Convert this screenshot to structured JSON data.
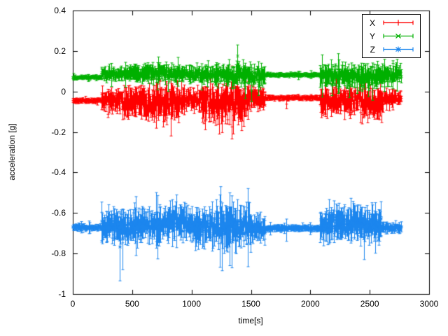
{
  "chart_data": {
    "type": "scatter",
    "style": "errorbars",
    "title": "",
    "xlabel": "time[s]",
    "ylabel": "acceleration [g]",
    "xlim": [
      0,
      3000
    ],
    "ylim": [
      -1,
      0.4
    ],
    "xticks": [
      0,
      500,
      1000,
      1500,
      2000,
      2500,
      3000
    ],
    "yticks": [
      -1,
      -0.8,
      -0.6,
      -0.4,
      -0.2,
      0,
      0.2,
      0.4
    ],
    "grid": false,
    "legend_position": "top-right",
    "sample_step_s": 4,
    "t_end_s": 2765,
    "series": [
      {
        "name": "X",
        "color": "#ff0000",
        "marker": "plus",
        "seed": 11,
        "baseline_g": -0.05,
        "segments": [
          [
            0,
            240,
            -0.045,
            0.012
          ],
          [
            240,
            420,
            -0.04,
            0.05
          ],
          [
            420,
            620,
            -0.05,
            0.07
          ],
          [
            620,
            900,
            -0.055,
            0.08
          ],
          [
            900,
            1080,
            -0.04,
            0.05
          ],
          [
            1080,
            1250,
            -0.06,
            0.08
          ],
          [
            1250,
            1480,
            -0.055,
            0.09
          ],
          [
            1480,
            1620,
            -0.03,
            0.05
          ],
          [
            1620,
            2080,
            -0.032,
            0.012
          ],
          [
            2080,
            2200,
            -0.05,
            0.07
          ],
          [
            2200,
            2420,
            -0.04,
            0.06
          ],
          [
            2420,
            2620,
            -0.06,
            0.07
          ],
          [
            2620,
            2770,
            -0.035,
            0.03
          ]
        ],
        "spikes": [
          [
            370,
            -0.11,
            -0.01
          ],
          [
            760,
            -0.175,
            -0.03
          ],
          [
            1150,
            -0.15,
            -0.02
          ],
          [
            1230,
            -0.21,
            -0.05
          ],
          [
            1300,
            -0.02,
            0.12
          ],
          [
            1390,
            -0.13,
            0.02
          ],
          [
            1800,
            -0.085,
            -0.04
          ]
        ]
      },
      {
        "name": "Y",
        "color": "#00b000",
        "marker": "cross",
        "seed": 22,
        "baseline_g": 0.08,
        "segments": [
          [
            0,
            240,
            0.07,
            0.01
          ],
          [
            240,
            470,
            0.085,
            0.03
          ],
          [
            470,
            900,
            0.09,
            0.04
          ],
          [
            900,
            1200,
            0.085,
            0.035
          ],
          [
            1200,
            1620,
            0.08,
            0.05
          ],
          [
            1620,
            2080,
            0.082,
            0.01
          ],
          [
            2080,
            2300,
            0.08,
            0.05
          ],
          [
            2300,
            2560,
            0.075,
            0.055
          ],
          [
            2560,
            2770,
            0.085,
            0.04
          ]
        ],
        "spikes": [
          [
            1385,
            0.12,
            0.23
          ],
          [
            1450,
            -0.035,
            0.07
          ],
          [
            1505,
            -0.05,
            0.06
          ],
          [
            1560,
            -0.02,
            0.08
          ],
          [
            2180,
            -0.02,
            0.09
          ],
          [
            2330,
            -0.03,
            0.09
          ],
          [
            2490,
            -0.025,
            0.095
          ],
          [
            2620,
            0.0,
            0.1
          ]
        ]
      },
      {
        "name": "Z",
        "color": "#1c86ee",
        "marker": "star",
        "seed": 33,
        "baseline_g": -0.67,
        "segments": [
          [
            0,
            240,
            -0.672,
            0.015
          ],
          [
            240,
            500,
            -0.67,
            0.07
          ],
          [
            500,
            800,
            -0.66,
            0.08
          ],
          [
            800,
            1000,
            -0.645,
            0.08
          ],
          [
            1000,
            1200,
            -0.67,
            0.08
          ],
          [
            1200,
            1500,
            -0.67,
            0.1
          ],
          [
            1500,
            1620,
            -0.68,
            0.06
          ],
          [
            1620,
            2080,
            -0.675,
            0.015
          ],
          [
            2080,
            2350,
            -0.655,
            0.075
          ],
          [
            2350,
            2600,
            -0.66,
            0.08
          ],
          [
            2600,
            2770,
            -0.672,
            0.025
          ]
        ],
        "spikes": [
          [
            395,
            -0.935,
            -0.6
          ],
          [
            420,
            -0.88,
            -0.58
          ],
          [
            800,
            -0.75,
            -0.58
          ],
          [
            1245,
            -0.68,
            -0.47
          ],
          [
            1255,
            -0.885,
            -0.55
          ],
          [
            1320,
            -0.86,
            -0.5
          ],
          [
            1800,
            -0.74,
            -0.63
          ],
          [
            2450,
            -0.83,
            -0.6
          ]
        ]
      }
    ]
  }
}
